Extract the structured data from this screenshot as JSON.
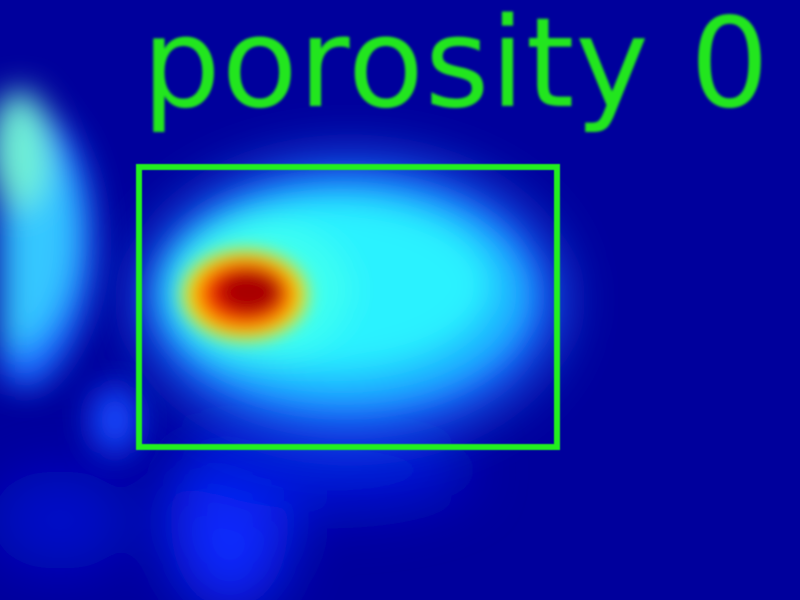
{
  "detection": {
    "label": "porosity 0",
    "box_color": "#22f01e",
    "text_color": "#22e61e"
  },
  "colors": {
    "background": "#00009c",
    "cold": "#0000c8",
    "warm_cyan": "#00ffff",
    "hot_core": "#c80000"
  }
}
